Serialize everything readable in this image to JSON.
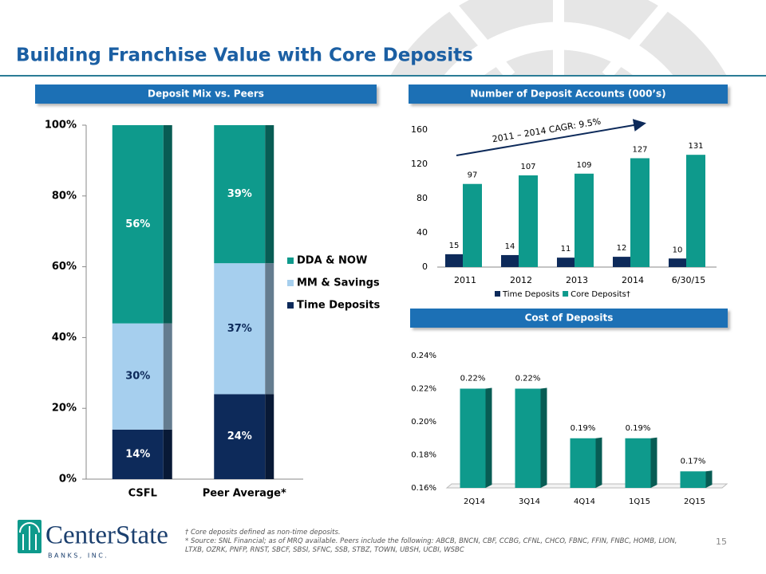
{
  "title": "Building Franchise Value with Core Deposits",
  "chart_data": [
    {
      "type": "stacked_bar",
      "header": "Deposit Mix vs. Peers",
      "categories": [
        "CSFL",
        "Peer Average*"
      ],
      "series": [
        {
          "name": "Time Deposits",
          "color": "#0d2a5a",
          "values": [
            14,
            24
          ],
          "value_labels": [
            "14%",
            "24%"
          ]
        },
        {
          "name": "MM & Savings",
          "color": "#a6cfee",
          "values": [
            30,
            37
          ],
          "value_labels": [
            "30%",
            "37%"
          ]
        },
        {
          "name": "DDA & NOW",
          "color": "#0e9a8c",
          "values": [
            56,
            39
          ],
          "value_labels": [
            "56%",
            "39%"
          ]
        }
      ],
      "ylim": [
        0,
        100
      ],
      "yticks": [
        {
          "value": 0,
          "label": "0%"
        },
        {
          "value": 20,
          "label": "20%"
        },
        {
          "value": 40,
          "label": "40%"
        },
        {
          "value": 60,
          "label": "60%"
        },
        {
          "value": 80,
          "label": "80%"
        },
        {
          "value": 100,
          "label": "100%"
        }
      ],
      "legend": "right"
    },
    {
      "type": "bar",
      "header": "Number of Deposit Accounts (000’s)",
      "categories": [
        "2011",
        "2012",
        "2013",
        "2014",
        "6/30/15"
      ],
      "series": [
        {
          "name": "Time Deposits",
          "color": "#0d2a5a",
          "values": [
            15,
            14,
            11,
            12,
            10
          ]
        },
        {
          "name": "Core Deposits†",
          "color": "#0e9a8c",
          "values": [
            97,
            107,
            109,
            127,
            131
          ]
        }
      ],
      "ylim": [
        0,
        160
      ],
      "yticks": [
        0,
        40,
        80,
        120,
        160
      ],
      "annotation": "2011 – 2014 CAGR: 9.5%",
      "legend": "bottom"
    },
    {
      "type": "bar",
      "header": "Cost of Deposits",
      "categories": [
        "2Q14",
        "3Q14",
        "4Q14",
        "1Q15",
        "2Q15"
      ],
      "values": [
        0.22,
        0.22,
        0.19,
        0.19,
        0.17
      ],
      "value_labels": [
        "0.22%",
        "0.22%",
        "0.19%",
        "0.19%",
        "0.17%"
      ],
      "color": "#0e9a8c",
      "ylim": [
        0.16,
        0.24
      ],
      "yticks": [
        {
          "value": 0.16,
          "label": "0.16%"
        },
        {
          "value": 0.18,
          "label": "0.18%"
        },
        {
          "value": 0.2,
          "label": "0.20%"
        },
        {
          "value": 0.22,
          "label": "0.22%"
        },
        {
          "value": 0.24,
          "label": "0.24%"
        }
      ]
    }
  ],
  "footnotes": [
    "† Core deposits defined as non-time deposits.",
    "* Source: SNL Financial; as of MRQ available. Peers include the following: ABCB, BNCN, CBF, CCBG, CFNL, CHCO, FBNC, FFIN, FNBC, HOMB, LION, LTXB, OZRK, PNFP, RNST, SBCF, SBSI, SFNC, SSB, STBZ, TOWN, UBSH, UCBI, WSBC"
  ],
  "page_number": "15",
  "logo": {
    "name": "CenterState",
    "subtitle": "BANKS, INC."
  }
}
